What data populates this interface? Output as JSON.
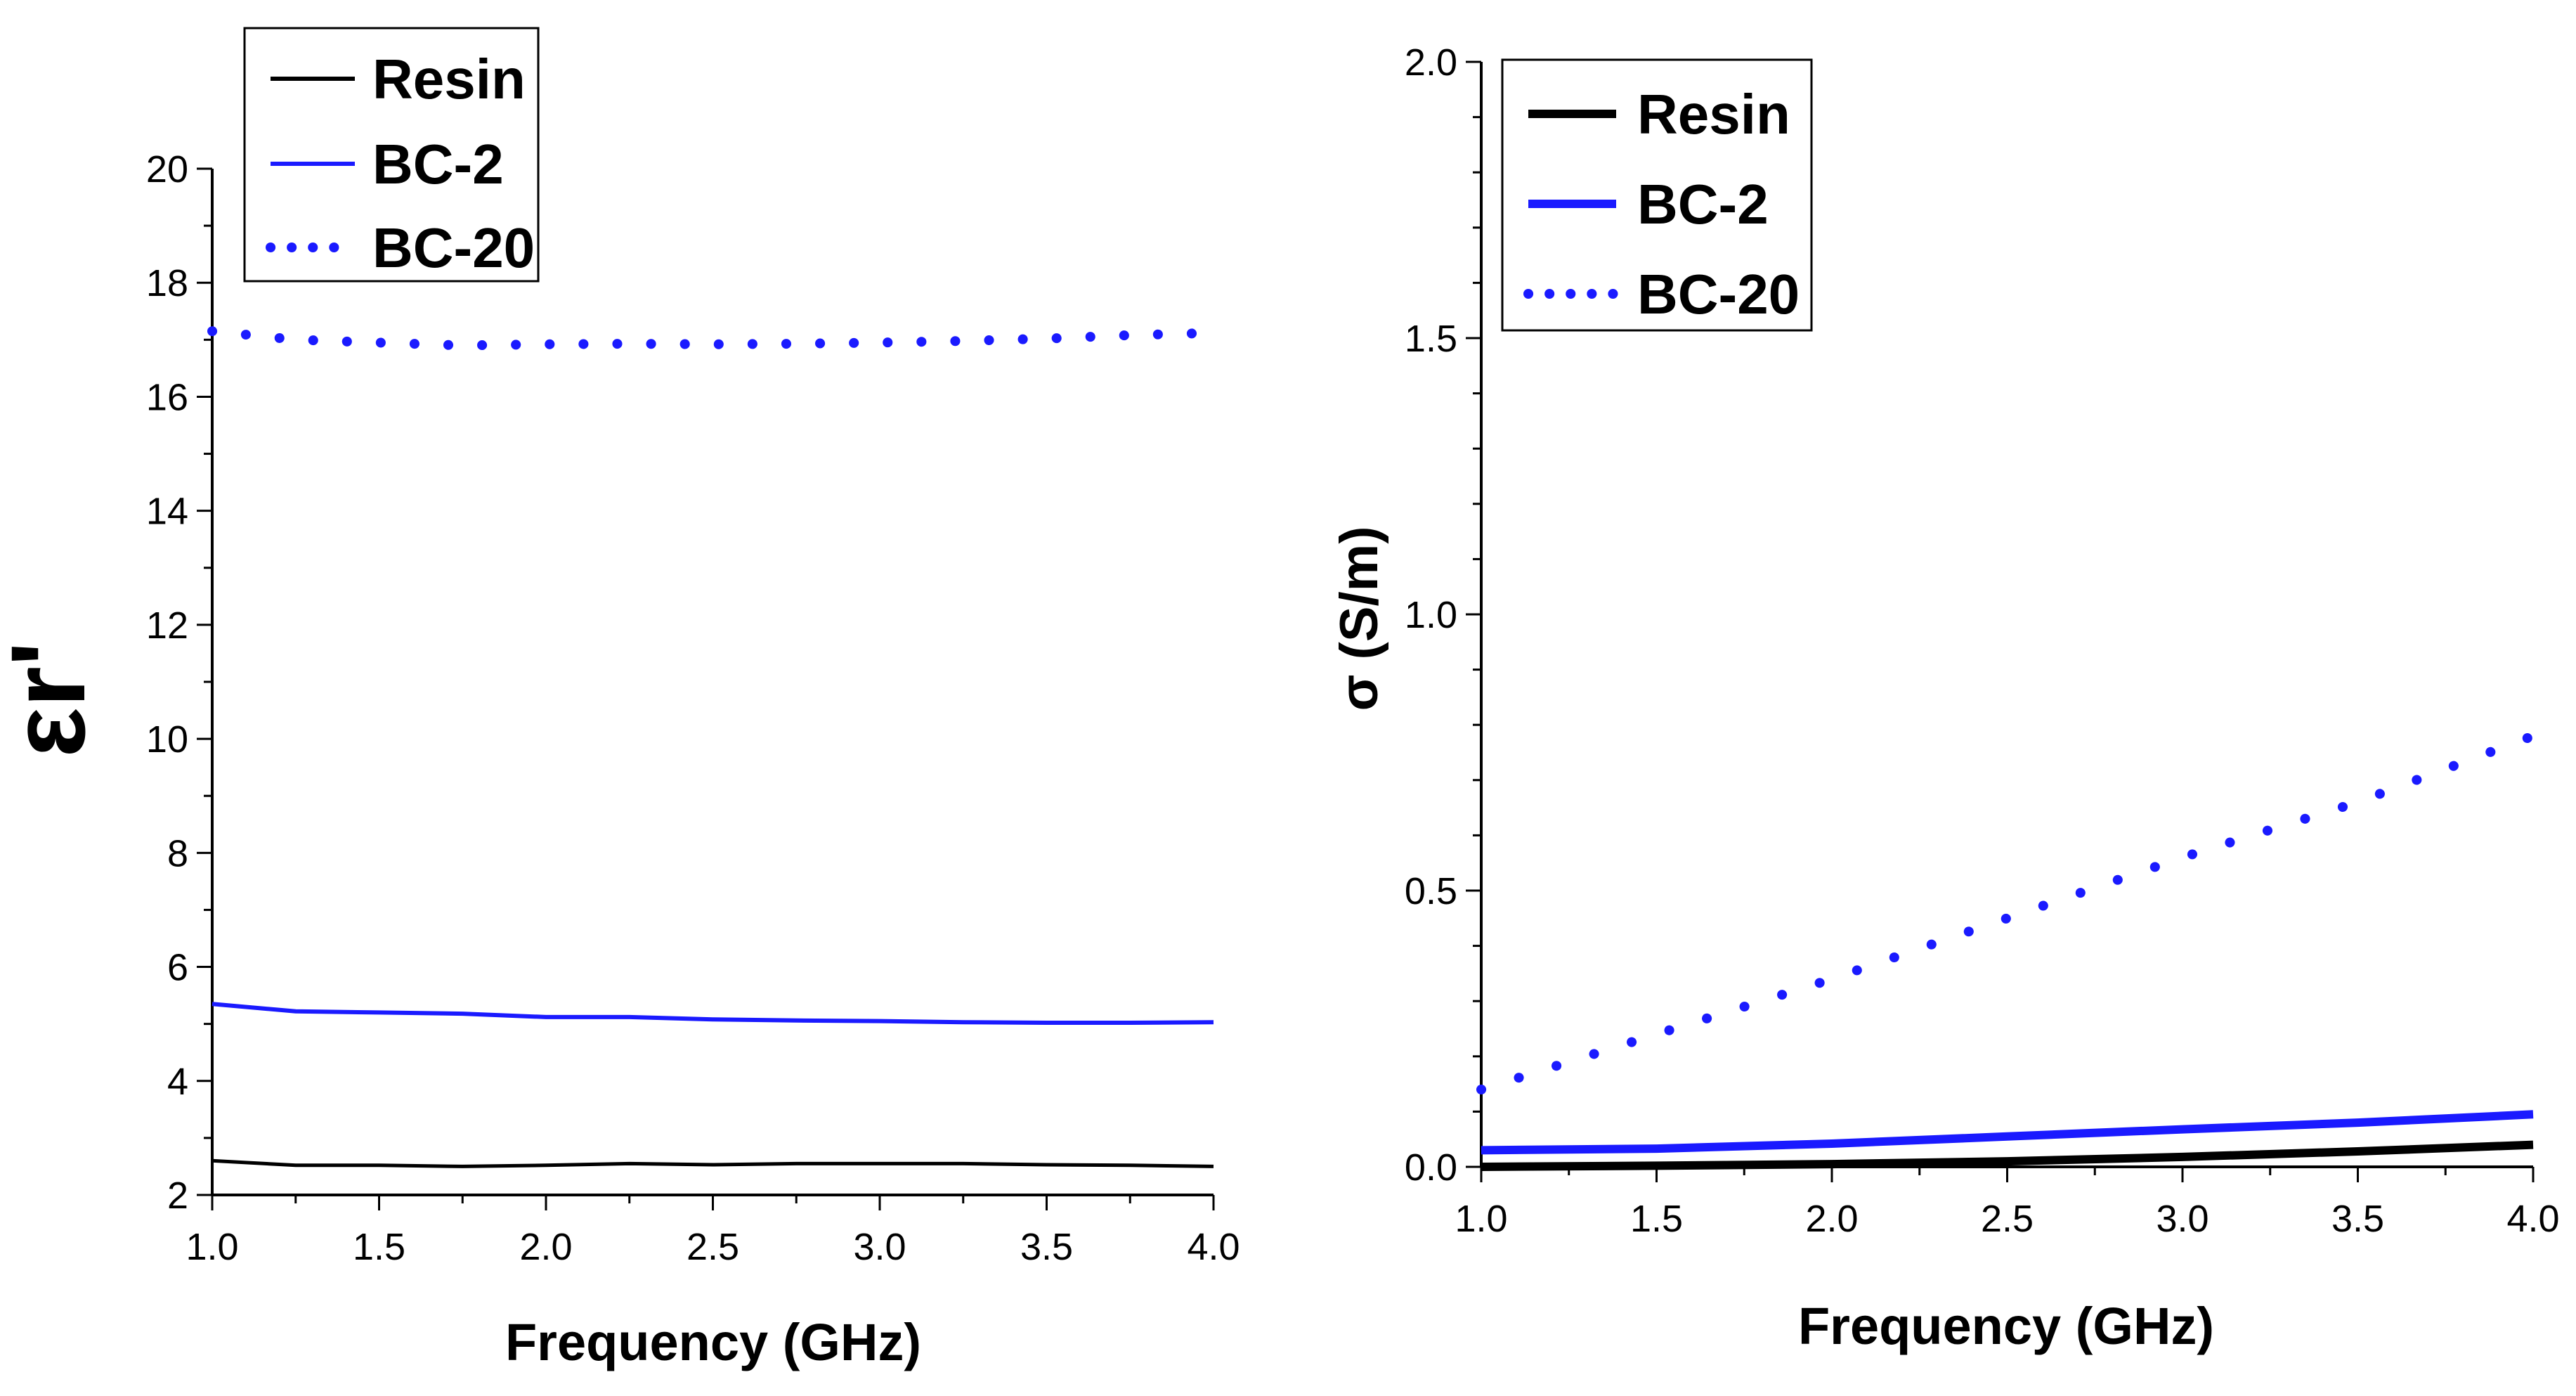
{
  "chart_data": [
    {
      "type": "line",
      "ylabel": "εr'",
      "xlabel": "Frequency (GHz)",
      "xlim": [
        1.0,
        4.0
      ],
      "ylim": [
        2,
        20
      ],
      "xticks": [
        1.0,
        1.5,
        2.0,
        2.5,
        3.0,
        3.5,
        4.0
      ],
      "xtick_labels": [
        "1.0",
        "1.5",
        "2.0",
        "2.5",
        "3.0",
        "3.5",
        "4.0"
      ],
      "yticks": [
        2,
        4,
        6,
        8,
        10,
        12,
        14,
        16,
        18,
        20
      ],
      "ytick_labels": [
        "2",
        "4",
        "6",
        "8",
        "10",
        "12",
        "14",
        "16",
        "18",
        "20"
      ],
      "legend_position": "top-left",
      "series": [
        {
          "name": "Resin",
          "color": "#000000",
          "style": "solid",
          "x": [
            1.0,
            1.25,
            1.5,
            1.75,
            2.0,
            2.25,
            2.5,
            2.75,
            3.0,
            3.25,
            3.5,
            3.75,
            4.0
          ],
          "values": [
            2.6,
            2.52,
            2.52,
            2.5,
            2.52,
            2.55,
            2.53,
            2.55,
            2.55,
            2.55,
            2.53,
            2.52,
            2.5
          ]
        },
        {
          "name": "BC-2",
          "color": "#1a1aff",
          "style": "solid",
          "x": [
            1.0,
            1.25,
            1.5,
            1.75,
            2.0,
            2.25,
            2.5,
            2.75,
            3.0,
            3.25,
            3.5,
            3.75,
            4.0
          ],
          "values": [
            5.35,
            5.22,
            5.2,
            5.18,
            5.12,
            5.12,
            5.08,
            5.06,
            5.05,
            5.03,
            5.02,
            5.02,
            5.03
          ]
        },
        {
          "name": "BC-20",
          "color": "#1a1aff",
          "style": "dotted",
          "x": [
            1.0,
            1.25,
            1.5,
            1.75,
            2.0,
            2.25,
            2.5,
            2.75,
            3.0,
            3.25,
            3.5,
            3.75,
            4.0
          ],
          "values": [
            17.15,
            17.0,
            16.95,
            16.9,
            16.92,
            16.93,
            16.92,
            16.93,
            16.95,
            16.98,
            17.02,
            17.08,
            17.12
          ]
        }
      ]
    },
    {
      "type": "line",
      "ylabel": "σ (S/m)",
      "xlabel": "Frequency (GHz)",
      "xlim": [
        1.0,
        4.0
      ],
      "ylim": [
        0.0,
        2.0
      ],
      "xticks": [
        1.0,
        1.5,
        2.0,
        2.5,
        3.0,
        3.5,
        4.0
      ],
      "xtick_labels": [
        "1.0",
        "1.5",
        "2.0",
        "2.5",
        "3.0",
        "3.5",
        "4.0"
      ],
      "yticks": [
        0.0,
        0.5,
        1.0,
        1.5,
        2.0
      ],
      "ytick_labels": [
        "0.0",
        "0.5",
        "1.0",
        "1.5",
        "2.0"
      ],
      "legend_position": "top-left",
      "series": [
        {
          "name": "Resin",
          "color": "#000000",
          "style": "solid",
          "x": [
            1.0,
            1.5,
            2.0,
            2.5,
            3.0,
            3.5,
            4.0
          ],
          "values": [
            0.0,
            0.002,
            0.005,
            0.01,
            0.018,
            0.028,
            0.04
          ]
        },
        {
          "name": "BC-2",
          "color": "#1a1aff",
          "style": "solid",
          "x": [
            1.0,
            1.5,
            2.0,
            2.5,
            3.0,
            3.5,
            4.0
          ],
          "values": [
            0.03,
            0.033,
            0.042,
            0.055,
            0.068,
            0.08,
            0.095
          ]
        },
        {
          "name": "BC-20",
          "color": "#1a1aff",
          "style": "dotted",
          "x": [
            1.0,
            1.5,
            2.0,
            2.5,
            3.0,
            3.5,
            4.0
          ],
          "values": [
            0.14,
            0.24,
            0.34,
            0.45,
            0.56,
            0.66,
            0.78
          ]
        }
      ]
    }
  ]
}
